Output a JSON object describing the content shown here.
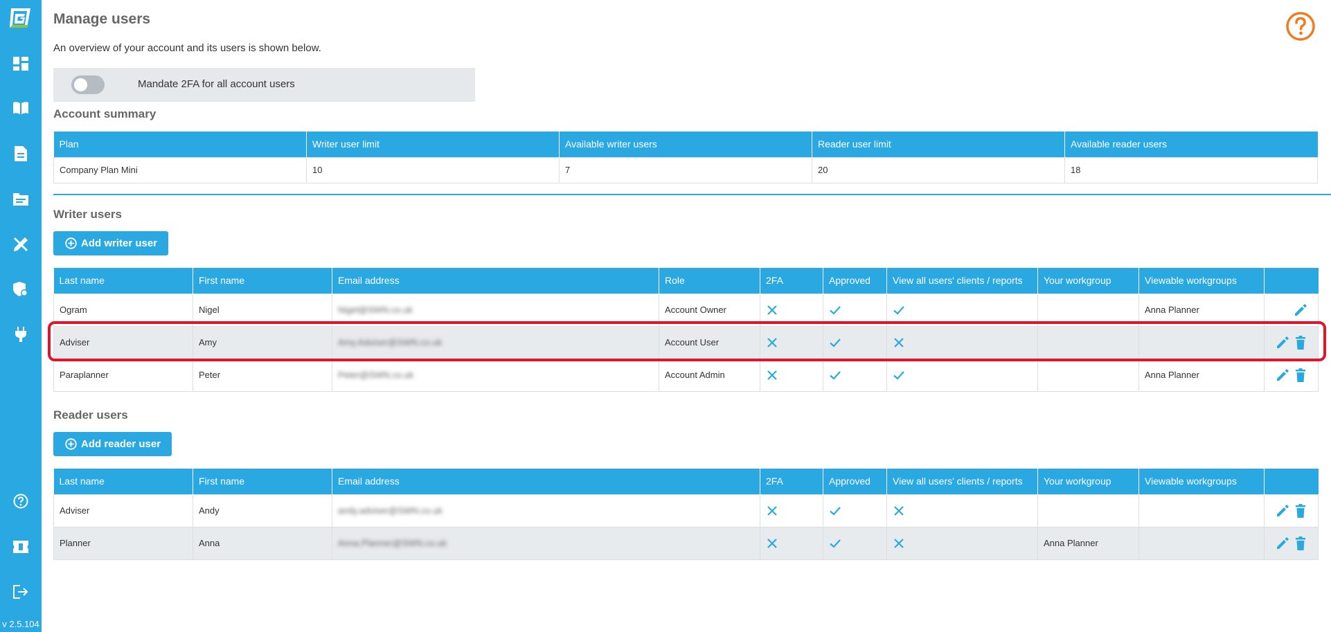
{
  "app": {
    "version": "v 2.5.104",
    "colors": {
      "brand": "#29a8e2",
      "help": "#f07c22",
      "highlight": "#e3132c"
    }
  },
  "sidebar": {
    "icons": [
      "dashboard-icon",
      "book-icon",
      "document-icon",
      "folder-icon",
      "tools-icon",
      "shield-settings-icon",
      "plug-icon",
      "help-circle-icon",
      "ticket-icon",
      "logout-icon"
    ]
  },
  "page": {
    "title": "Manage users",
    "description": "An overview of your account and its users is shown below."
  },
  "mandate2fa": {
    "label": "Mandate 2FA for all account users",
    "enabled": false
  },
  "account_summary": {
    "title": "Account summary",
    "headers": [
      "Plan",
      "Writer user limit",
      "Available writer users",
      "Reader user limit",
      "Available reader users"
    ],
    "row": [
      "Company Plan Mini",
      "10",
      "7",
      "20",
      "18"
    ]
  },
  "writer_users": {
    "title": "Writer users",
    "add_label": "Add writer user",
    "headers": [
      "Last name",
      "First name",
      "Email address",
      "Role",
      "2FA",
      "Approved",
      "View all users' clients / reports",
      "Your workgroup",
      "Viewable workgroups",
      ""
    ],
    "rows": [
      {
        "last": "Ogram",
        "first": "Nigel",
        "email": "Nigel@SWN.co.uk",
        "role": "Account Owner",
        "twofa": "no",
        "approved": "yes",
        "view_all": "yes",
        "workgroup": "",
        "viewable": "Anna Planner",
        "can_delete": false
      },
      {
        "last": "Adviser",
        "first": "Amy",
        "email": "Amy.Adviser@SWN.co.uk",
        "role": "Account User",
        "twofa": "no",
        "approved": "yes",
        "view_all": "no",
        "workgroup": "",
        "viewable": "",
        "can_delete": true
      },
      {
        "last": "Paraplanner",
        "first": "Peter",
        "email": "Peter@SWN.co.uk",
        "role": "Account Admin",
        "twofa": "no",
        "approved": "yes",
        "view_all": "yes",
        "workgroup": "",
        "viewable": "Anna Planner",
        "can_delete": true
      }
    ]
  },
  "reader_users": {
    "title": "Reader users",
    "add_label": "Add reader user",
    "headers": [
      "Last name",
      "First name",
      "Email address",
      "2FA",
      "Approved",
      "View all users' clients / reports",
      "Your workgroup",
      "Viewable workgroups",
      ""
    ],
    "rows": [
      {
        "last": "Adviser",
        "first": "Andy",
        "email": "andy.adviser@SWN.co.uk",
        "twofa": "no",
        "approved": "yes",
        "view_all": "no",
        "workgroup": "",
        "viewable": "",
        "can_delete": true
      },
      {
        "last": "Planner",
        "first": "Anna",
        "email": "Anna.Planner@SWN.co.uk",
        "twofa": "no",
        "approved": "yes",
        "view_all": "no",
        "workgroup": "Anna Planner",
        "viewable": "",
        "can_delete": true
      }
    ]
  }
}
